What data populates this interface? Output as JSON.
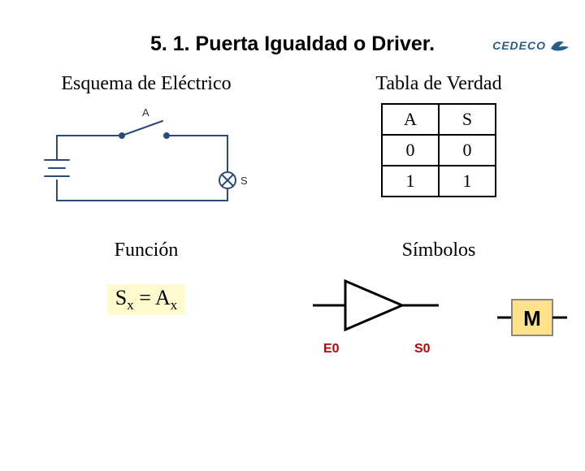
{
  "logo_text": "CEDECO",
  "title": "5. 1. Puerta Igualdad o Driver.",
  "left_top_header": "Esquema de Eléctrico",
  "right_top_header": "Tabla de Verdad",
  "left_bottom_header": "Función",
  "right_bottom_header": "Símbolos",
  "formula_html": "S<sub>x</sub> = A<sub>x</sub>",
  "truth_table": {
    "cols": [
      "A",
      "S"
    ],
    "rows": [
      [
        "0",
        "0"
      ],
      [
        "1",
        "1"
      ]
    ]
  },
  "circuit": {
    "switch_label": "A",
    "lamp_label": "S",
    "stroke": "#2b4a7a",
    "stroke_w": 2
  },
  "symbol_buffer": {
    "input_label": "E0",
    "output_label": "S0",
    "stroke": "#000000",
    "fill": "#ffffff",
    "stroke_w": 3
  },
  "symbol_box": {
    "letter": "M",
    "fill": "#ffe28a",
    "stroke": "#888888",
    "text_color": "#000000"
  },
  "colors": {
    "bg": "#ffffff",
    "formula_bg": "#fffbcf",
    "label_red": "#c00000",
    "logo_blue": "#2a5c8a"
  }
}
